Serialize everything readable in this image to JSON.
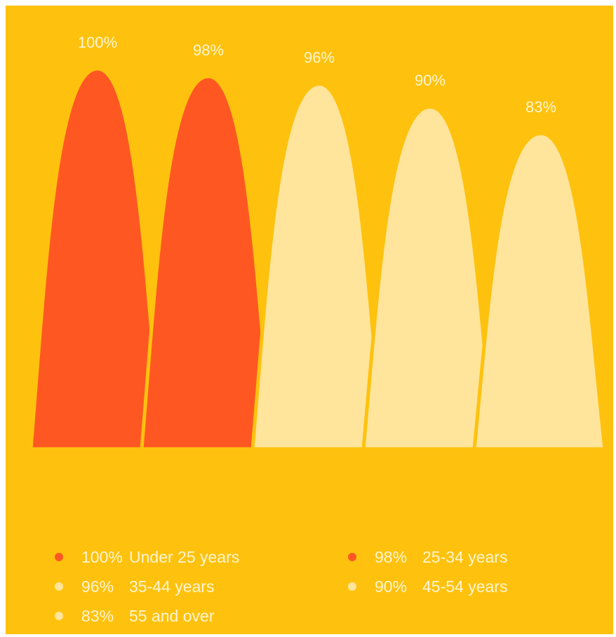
{
  "chart_data": {
    "type": "area",
    "categories": [
      "Under 25 years",
      "25-34 years",
      "35-44 years",
      "45-54 years",
      "55 and over"
    ],
    "values": [
      100,
      98,
      96,
      90,
      83
    ],
    "data_labels": [
      "100%",
      "98%",
      "96%",
      "90%",
      "83%"
    ],
    "ylim": [
      0,
      100
    ],
    "grid": false,
    "legend_position": "bottom",
    "colors": {
      "background": "#FEC20E",
      "highlight": "#FF5722",
      "muted": "#FFE49B",
      "label": "#FFF4D2"
    },
    "series_colors": [
      "#FF5722",
      "#FF5722",
      "#FFE49B",
      "#FFE49B",
      "#FFE49B"
    ]
  },
  "legend": {
    "items": [
      {
        "pct": "100%",
        "label": "Under 25 years",
        "color": "#FF5722"
      },
      {
        "pct": "98%",
        "label": "25-34 years",
        "color": "#FF5722"
      },
      {
        "pct": "96%",
        "label": "35-44 years",
        "color": "#FFE49B"
      },
      {
        "pct": "90%",
        "label": "45-54 years",
        "color": "#FFE49B"
      },
      {
        "pct": "83%",
        "label": "55 and over",
        "color": "#FFE49B"
      }
    ]
  }
}
